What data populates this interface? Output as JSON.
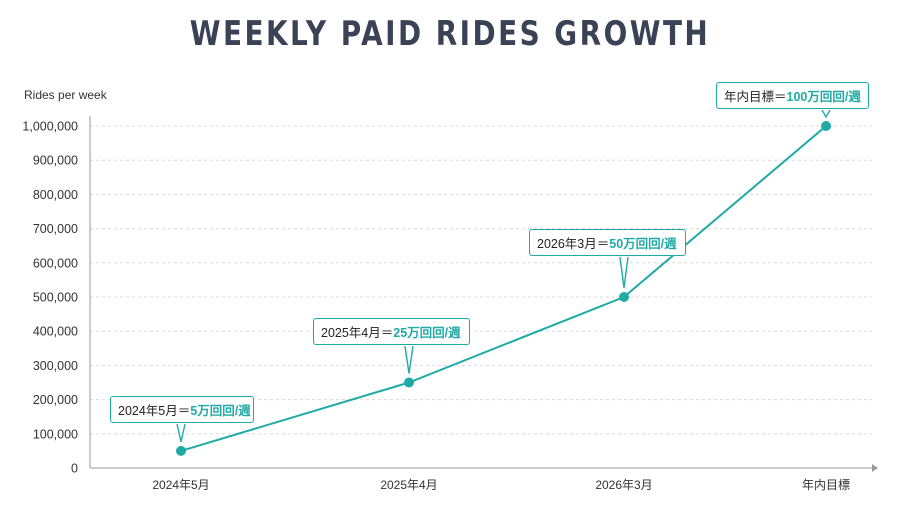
{
  "title": "WEEKLY PAID RIDES GROWTH",
  "colors": {
    "accent": "#1faaa6",
    "title": "#3a4256",
    "grid": "#d8d8d8",
    "axis": "#9a9a9a"
  },
  "chart_data": {
    "type": "line",
    "title": "WEEKLY PAID RIDES GROWTH",
    "ylabel": "Rides per week",
    "xlabel": "",
    "categories": [
      "2024年5月",
      "2025年4月",
      "2026年3月",
      "年内目標"
    ],
    "series": [
      {
        "values": [
          50000,
          250000,
          500000,
          1000000
        ]
      }
    ],
    "ylim": [
      0,
      1000000
    ],
    "yticks": [
      0,
      100000,
      200000,
      300000,
      400000,
      500000,
      600000,
      700000,
      800000,
      900000,
      1000000
    ],
    "ytick_labels": [
      "0",
      "100,000",
      "200,000",
      "300,000",
      "400,000",
      "500,000",
      "600,000",
      "700,000",
      "800,000",
      "900,000",
      "1,000,000"
    ],
    "grid": true,
    "annotations": [
      {
        "prefix": "2024年5月＝",
        "highlight": "5万回回/週"
      },
      {
        "prefix": "2025年4月＝",
        "highlight": "25万回回/週"
      },
      {
        "prefix": "2026年3月＝",
        "highlight": "50万回回/週"
      },
      {
        "prefix": "年内目標＝",
        "highlight": "100万回回/週"
      }
    ]
  }
}
